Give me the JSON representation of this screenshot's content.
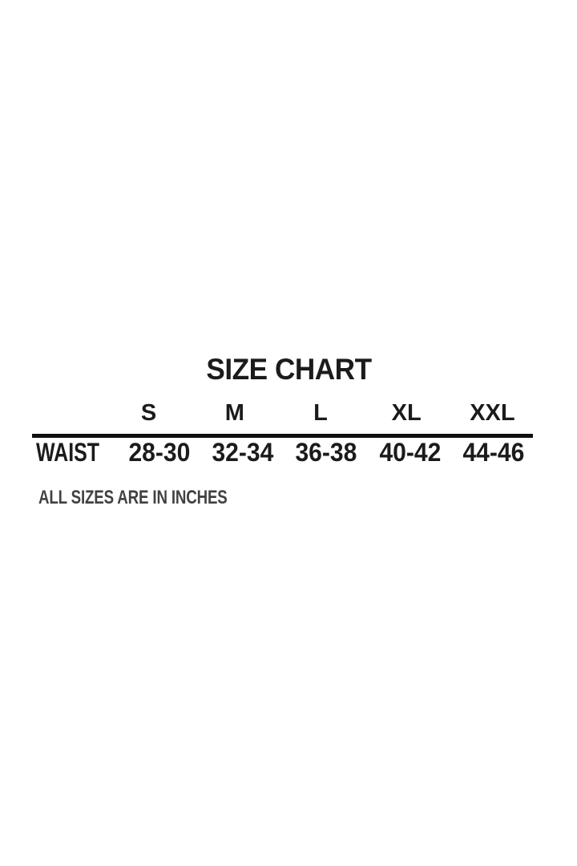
{
  "chart_data": {
    "type": "table",
    "title": "SIZE CHART",
    "columns": [
      "S",
      "M",
      "L",
      "XL",
      "XXL"
    ],
    "rows": [
      {
        "label": "WAIST",
        "values": [
          "28-30",
          "32-34",
          "36-38",
          "40-42",
          "44-46"
        ]
      }
    ],
    "footnote": "ALL SIZES ARE IN INCHES",
    "colors": {
      "background": "#ffffff",
      "text": "#1b1b1b",
      "divider": "#0f0f0f",
      "footnote": "#414141"
    }
  }
}
